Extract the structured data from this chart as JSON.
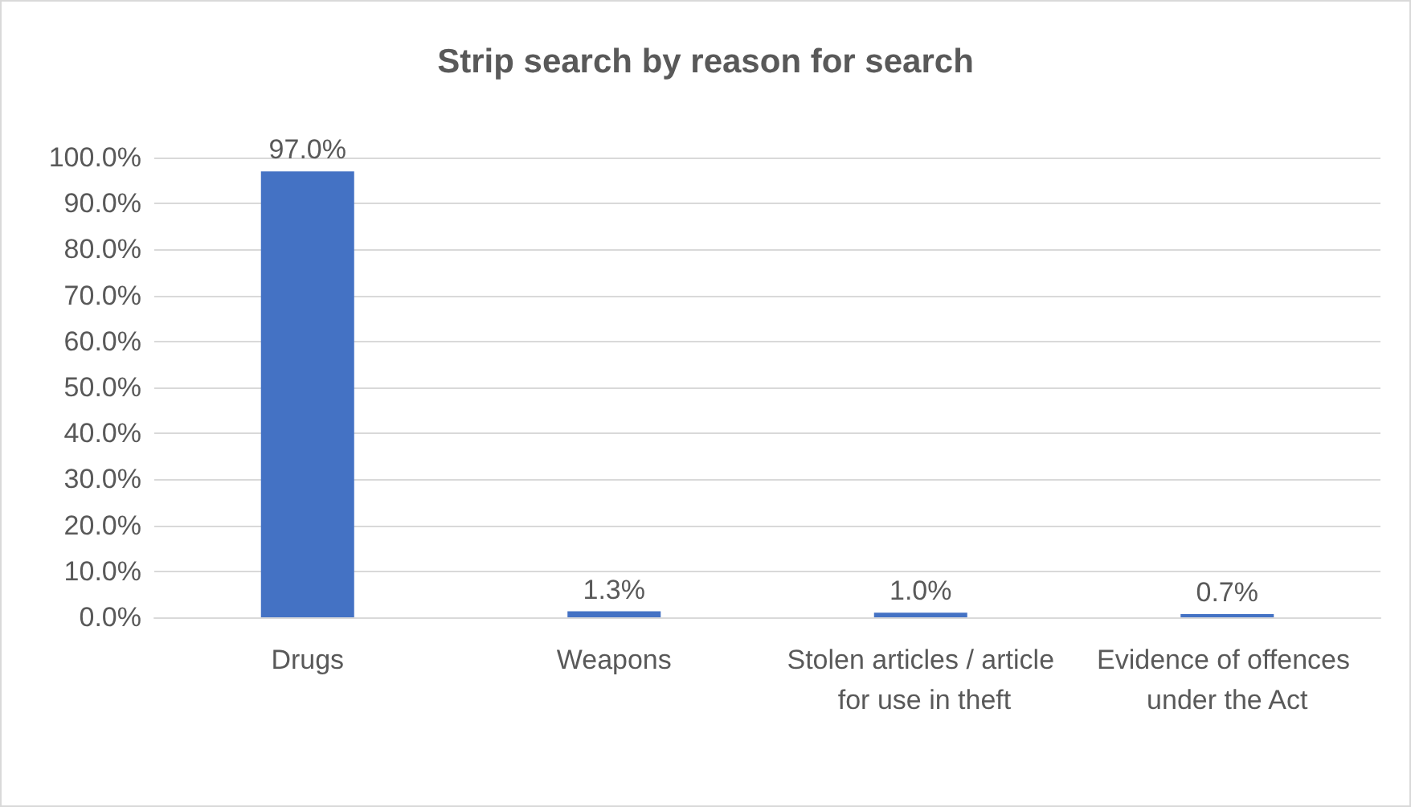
{
  "chart_data": {
    "type": "bar",
    "title": "Strip search by reason for search",
    "categories": [
      "Drugs",
      "Weapons",
      "Stolen articles / article for use in theft",
      "Evidence of offences under the Act"
    ],
    "values": [
      97.0,
      1.3,
      1.0,
      0.7
    ],
    "value_labels": [
      "97.0%",
      "1.3%",
      "1.0%",
      "0.7%"
    ],
    "color": "#4472c4",
    "ylim": [
      0,
      100
    ],
    "yticks": [
      {
        "value": 0,
        "label": "0.0%"
      },
      {
        "value": 10,
        "label": "10.0%"
      },
      {
        "value": 20,
        "label": "20.0%"
      },
      {
        "value": 30,
        "label": "30.0%"
      },
      {
        "value": 40,
        "label": "40.0%"
      },
      {
        "value": 50,
        "label": "50.0%"
      },
      {
        "value": 60,
        "label": "60.0%"
      },
      {
        "value": 70,
        "label": "70.0%"
      },
      {
        "value": 80,
        "label": "80.0%"
      },
      {
        "value": 90,
        "label": "90.0%"
      },
      {
        "value": 100,
        "label": "100.0%"
      }
    ],
    "grid": "y"
  }
}
